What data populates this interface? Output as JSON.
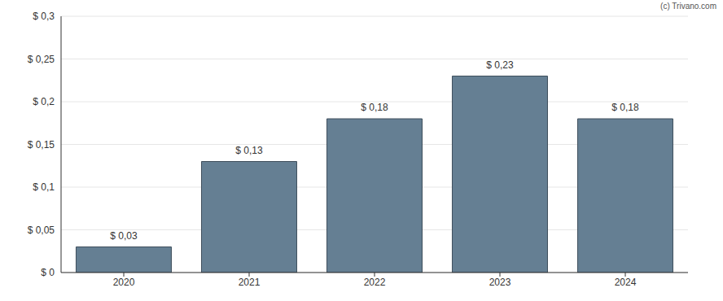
{
  "chart_data": {
    "type": "bar",
    "categories": [
      "2020",
      "2021",
      "2022",
      "2023",
      "2024"
    ],
    "values": [
      0.03,
      0.13,
      0.18,
      0.23,
      0.18
    ],
    "value_labels": [
      "$ 0,03",
      "$ 0,13",
      "$ 0,18",
      "$ 0,23",
      "$ 0,18"
    ],
    "data_labels": true,
    "color": "#657f93",
    "ylim": [
      0,
      0.3
    ],
    "yticks": [
      {
        "value": 0,
        "label": "$ 0"
      },
      {
        "value": 0.05,
        "label": "$ 0,05"
      },
      {
        "value": 0.1,
        "label": "$ 0,1"
      },
      {
        "value": 0.15,
        "label": "$ 0,15"
      },
      {
        "value": 0.2,
        "label": "$ 0,2"
      },
      {
        "value": 0.25,
        "label": "$ 0,25"
      },
      {
        "value": 0.3,
        "label": "$ 0,3"
      }
    ],
    "grid": true,
    "annotations": [
      "(c) Trivano.com"
    ]
  }
}
